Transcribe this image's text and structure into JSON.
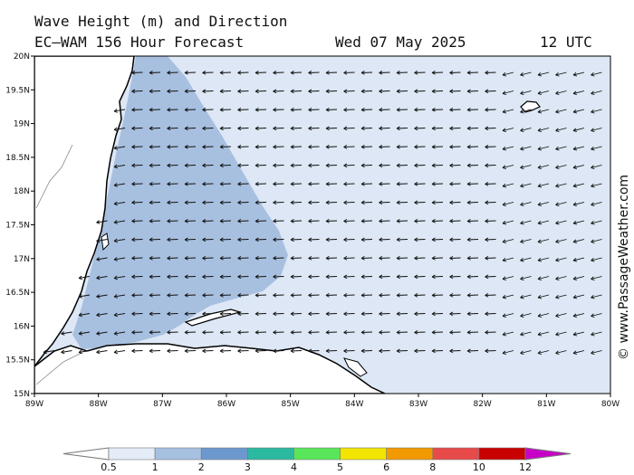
{
  "header": {
    "line1": "Wave Height (m) and Direction",
    "line2": "EC—WAM 156 Hour Forecast",
    "date": "Wed 07 May 2025",
    "time": "12 UTC"
  },
  "credit": "© www.PassageWeather.com",
  "map": {
    "lat_labels": [
      "20N",
      "19.5N",
      "19N",
      "18.5N",
      "18N",
      "17.5N",
      "17N",
      "16.5N",
      "16N",
      "15.5N",
      "15N"
    ],
    "lon_labels": [
      "89W",
      "88W",
      "87W",
      "86W",
      "85W",
      "84W",
      "83W",
      "82W",
      "81W",
      "80W"
    ],
    "lat_range": [
      15,
      20
    ],
    "lon_range": [
      -89,
      -80
    ],
    "wave_direction": "arrows pointing west (westward swell)"
  },
  "legend": {
    "labels": [
      "0.5",
      "1",
      "2",
      "3",
      "4",
      "5",
      "6",
      "8",
      "10",
      "12"
    ],
    "colors": [
      "#e4ecf7",
      "#a6c0e2",
      "#6d98cf",
      "#2cb9a1",
      "#5ae65a",
      "#f2e600",
      "#f29900",
      "#e84a4a",
      "#c80000",
      "#c800c8"
    ]
  },
  "colors": {
    "sea_low": "#dde7f5",
    "sea_mid": "#a8c0e0",
    "land": "#ffffff",
    "coast": "#000000"
  }
}
